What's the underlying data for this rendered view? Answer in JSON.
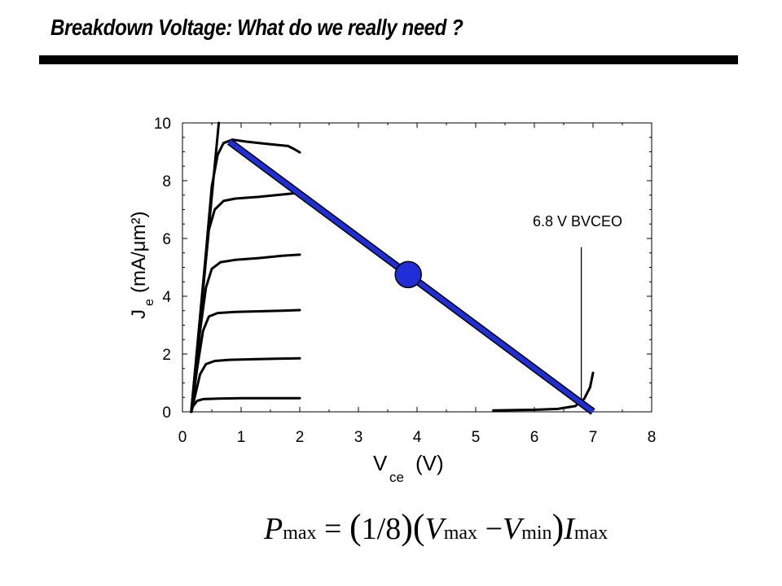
{
  "slide": {
    "title": "Breakdown Voltage: What do we really need ?"
  },
  "chart_data": {
    "type": "line",
    "xlabel": {
      "main": "V",
      "sub": "ce",
      "unit": "(V)"
    },
    "ylabel": {
      "main": "J",
      "sub": "e",
      "unit": "(mA/μm²)"
    },
    "xlim": [
      0,
      8
    ],
    "ylim": [
      0,
      10
    ],
    "xticks": [
      "0",
      "1",
      "2",
      "3",
      "4",
      "5",
      "6",
      "7",
      "8"
    ],
    "yticks": [
      "0",
      "2",
      "4",
      "6",
      "8",
      "10"
    ],
    "grid": false,
    "series": [
      {
        "values": [
          [
            0.15,
            0
          ],
          [
            0.18,
            0.2
          ],
          [
            0.25,
            0.38
          ],
          [
            0.35,
            0.44
          ],
          [
            0.6,
            0.46
          ],
          [
            1.0,
            0.47
          ],
          [
            1.5,
            0.47
          ],
          [
            2.0,
            0.47
          ]
        ]
      },
      {
        "values": [
          [
            0.15,
            0
          ],
          [
            0.22,
            0.6
          ],
          [
            0.3,
            1.3
          ],
          [
            0.4,
            1.65
          ],
          [
            0.55,
            1.76
          ],
          [
            0.8,
            1.8
          ],
          [
            1.2,
            1.82
          ],
          [
            1.6,
            1.84
          ],
          [
            2.0,
            1.85
          ]
        ]
      },
      {
        "values": [
          [
            0.15,
            0
          ],
          [
            0.25,
            1.5
          ],
          [
            0.35,
            2.8
          ],
          [
            0.45,
            3.3
          ],
          [
            0.6,
            3.42
          ],
          [
            0.9,
            3.46
          ],
          [
            1.3,
            3.48
          ],
          [
            1.7,
            3.5
          ],
          [
            2.0,
            3.52
          ]
        ]
      },
      {
        "values": [
          [
            0.15,
            0
          ],
          [
            0.3,
            2.8
          ],
          [
            0.4,
            4.3
          ],
          [
            0.5,
            4.95
          ],
          [
            0.65,
            5.18
          ],
          [
            0.9,
            5.26
          ],
          [
            1.3,
            5.32
          ],
          [
            1.7,
            5.4
          ],
          [
            2.0,
            5.44
          ]
        ]
      },
      {
        "values": [
          [
            0.15,
            0
          ],
          [
            0.35,
            4.2
          ],
          [
            0.45,
            6.3
          ],
          [
            0.55,
            7.0
          ],
          [
            0.7,
            7.3
          ],
          [
            0.9,
            7.38
          ],
          [
            1.3,
            7.44
          ],
          [
            1.7,
            7.52
          ],
          [
            2.0,
            7.58
          ]
        ]
      },
      {
        "values": [
          [
            0.15,
            0
          ],
          [
            0.4,
            5.5
          ],
          [
            0.5,
            7.8
          ],
          [
            0.6,
            8.9
          ],
          [
            0.7,
            9.3
          ],
          [
            0.85,
            9.42
          ],
          [
            1.1,
            9.35
          ],
          [
            1.5,
            9.26
          ],
          [
            1.8,
            9.2
          ],
          [
            1.9,
            9.1
          ],
          [
            2.0,
            8.98
          ]
        ]
      },
      {
        "values": [
          [
            0.15,
            0
          ],
          [
            0.62,
            10.0
          ]
        ]
      },
      {
        "values": [
          [
            5.3,
            0.05
          ],
          [
            6.0,
            0.07
          ],
          [
            6.4,
            0.1
          ],
          [
            6.7,
            0.2
          ],
          [
            6.85,
            0.45
          ],
          [
            6.95,
            0.85
          ],
          [
            7.0,
            1.35
          ]
        ]
      }
    ],
    "load_line": {
      "color": "#1f2ed6",
      "from": [
        0.8,
        9.35
      ],
      "to": [
        7.0,
        0.0
      ]
    },
    "operating_point": {
      "x": 3.85,
      "y": 4.75,
      "color": "#1f2ed6"
    },
    "annotation": {
      "text": "6.8 V BVCEO",
      "x": 6.8,
      "y_from": 0.3,
      "y_to": 5.7
    }
  },
  "formula": {
    "P": "P",
    "max1": "max",
    "eq": "=",
    "lparen1": "(",
    "frac": "1/8",
    "rparen1": ")",
    "lparen2": "(",
    "V1": "V",
    "max2": "max",
    "minus": "−",
    "V2": "V",
    "min": "min",
    "rparen2": ")",
    "I": "I",
    "max3": "max"
  }
}
